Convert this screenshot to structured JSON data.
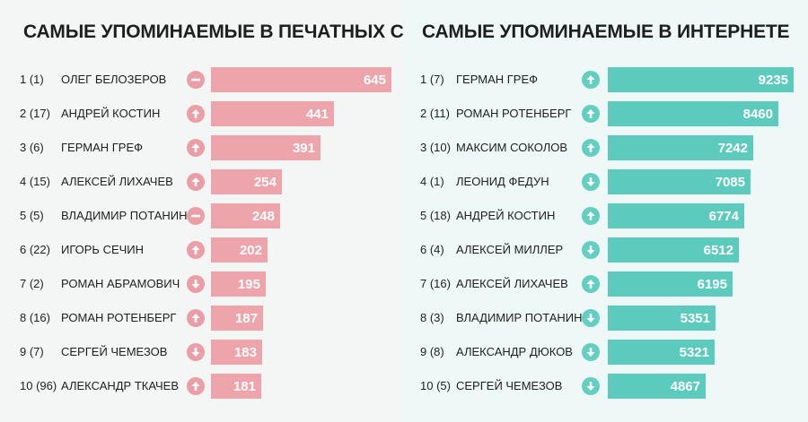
{
  "chart_data": [
    {
      "type": "bar",
      "title": "САМЫЕ УПОМИНАЕМЫЕ В ПЕЧАТНЫХ СМИ",
      "rows": [
        {
          "rank": "1 (1)",
          "name": "ОЛЕГ БЕЛОЗЕРОВ",
          "trend": "same",
          "value": 645
        },
        {
          "rank": "2 (17)",
          "name": "АНДРЕЙ КОСТИН",
          "trend": "up",
          "value": 441
        },
        {
          "rank": "3 (6)",
          "name": "ГЕРМАН ГРЕФ",
          "trend": "up",
          "value": 391
        },
        {
          "rank": "4 (15)",
          "name": "АЛЕКСЕЙ ЛИХАЧЕВ",
          "trend": "up",
          "value": 254
        },
        {
          "rank": "5 (5)",
          "name": "ВЛАДИМИР ПОТАНИН",
          "trend": "same",
          "value": 248
        },
        {
          "rank": "6 (22)",
          "name": "ИГОРЬ СЕЧИН",
          "trend": "up",
          "value": 202
        },
        {
          "rank": "7 (2)",
          "name": "РОМАН АБРАМОВИЧ",
          "trend": "down",
          "value": 195
        },
        {
          "rank": "8 (16)",
          "name": "РОМАН РОТЕНБЕРГ",
          "trend": "up",
          "value": 187
        },
        {
          "rank": "9 (7)",
          "name": "СЕРГЕЙ ЧЕМЕЗОВ",
          "trend": "down",
          "value": 183
        },
        {
          "rank": "10 (96)",
          "name": "АЛЕКСАНДР ТКАЧЕВ",
          "trend": "up",
          "value": 181
        }
      ],
      "color": "#eda4ab",
      "xlim": [
        0,
        645
      ]
    },
    {
      "type": "bar",
      "title": "САМЫЕ УПОМИНАЕМЫЕ В ИНТЕРНЕТЕ",
      "rows": [
        {
          "rank": "1 (7)",
          "name": "ГЕРМАН ГРЕФ",
          "trend": "up",
          "value": 9235
        },
        {
          "rank": "2 (11)",
          "name": "РОМАН РОТЕНБЕРГ",
          "trend": "up",
          "value": 8460
        },
        {
          "rank": "3 (10)",
          "name": "МАКСИМ СОКОЛОВ",
          "trend": "up",
          "value": 7242
        },
        {
          "rank": "4 (1)",
          "name": "ЛЕОНИД ФЕДУН",
          "trend": "down",
          "value": 7085
        },
        {
          "rank": "5 (18)",
          "name": "АНДРЕЙ КОСТИН",
          "trend": "up",
          "value": 6774
        },
        {
          "rank": "6 (4)",
          "name": "АЛЕКСЕЙ МИЛЛЕР",
          "trend": "down",
          "value": 6512
        },
        {
          "rank": "7 (16)",
          "name": "АЛЕКСЕЙ ЛИХАЧЕВ",
          "trend": "up",
          "value": 6195
        },
        {
          "rank": "8 (3)",
          "name": "ВЛАДИМИР ПОТАНИН",
          "trend": "down",
          "value": 5351
        },
        {
          "rank": "9 (8)",
          "name": "АЛЕКСАНДР ДЮКОВ",
          "trend": "down",
          "value": 5321
        },
        {
          "rank": "10 (5)",
          "name": "СЕРГЕЙ ЧЕМЕЗОВ",
          "trend": "down",
          "value": 4867
        }
      ],
      "color": "#5ccbbd",
      "xlim": [
        0,
        9235
      ]
    }
  ]
}
